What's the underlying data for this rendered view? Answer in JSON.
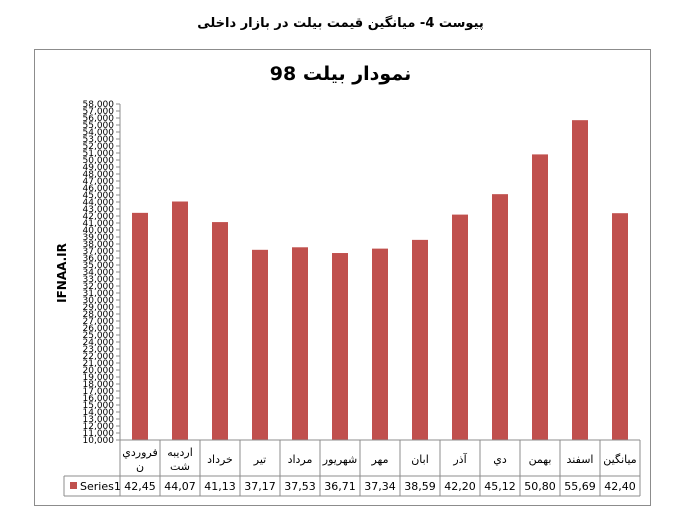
{
  "document": {
    "heading": "پیوست 4- میانگین قیمت بیلت در بازار داخلی"
  },
  "colors": {
    "bar": "#C0504D",
    "axis": "#8c8c8c",
    "grid": "#8c8c8c"
  },
  "chart_data": {
    "type": "bar",
    "title": "نمودار بیلت 98",
    "ylabel": "IFNAA.IR",
    "xlabel": "",
    "ylim": [
      10000,
      58000
    ],
    "ytick_step": 1000,
    "yticks": [
      "10,000",
      "11,000",
      "12,000",
      "13,000",
      "14,000",
      "15,000",
      "16,000",
      "17,000",
      "18,000",
      "19,000",
      "20,000",
      "21,000",
      "22,000",
      "23,000",
      "24,000",
      "25,000",
      "26,000",
      "27,000",
      "28,000",
      "29,000",
      "30,000",
      "31,000",
      "32,000",
      "33,000",
      "34,000",
      "35,000",
      "36,000",
      "37,000",
      "38,000",
      "39,000",
      "40,000",
      "41,000",
      "42,000",
      "43,000",
      "44,000",
      "45,000",
      "46,000",
      "47,000",
      "48,000",
      "49,000",
      "50,000",
      "51,000",
      "52,000",
      "53,000",
      "54,000",
      "55,000",
      "56,000",
      "57,000",
      "58,000"
    ],
    "categories": [
      "فروردین",
      "اردیبهشت",
      "خرداد",
      "تیر",
      "مرداد",
      "شهریور",
      "مهر",
      "ابان",
      "آذر",
      "دی",
      "بهمن",
      "اسفند",
      "میانگین"
    ],
    "category_lines": [
      [
        "فروردي",
        "ن"
      ],
      [
        "ارديبه",
        "شت"
      ],
      [
        "خرداد"
      ],
      [
        "تير"
      ],
      [
        "مرداد"
      ],
      [
        "شهريور"
      ],
      [
        "مهر"
      ],
      [
        "ابان"
      ],
      [
        "آذر"
      ],
      [
        "دي"
      ],
      [
        "بهمن"
      ],
      [
        "اسفند"
      ],
      [
        "ميانگين"
      ]
    ],
    "series": [
      {
        "name": "Series1",
        "values": [
          42450,
          44070,
          41130,
          37170,
          37530,
          36710,
          37340,
          38590,
          42200,
          45120,
          50800,
          55690,
          42400
        ],
        "value_labels": [
          "42,45",
          "44,07",
          "41,13",
          "37,17",
          "37,53",
          "36,71",
          "37,34",
          "38,59",
          "42,20",
          "45,12",
          "50,80",
          "55,69",
          "42,40"
        ]
      }
    ],
    "grid": false,
    "legend": "data-table"
  }
}
